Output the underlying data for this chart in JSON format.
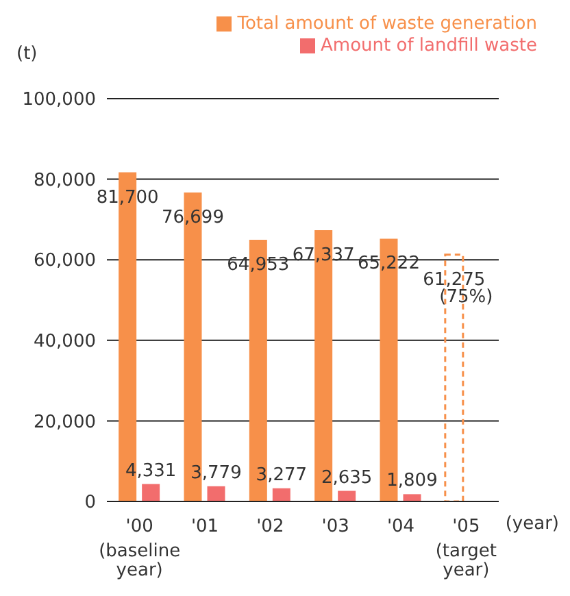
{
  "chart_data": {
    "type": "bar",
    "ylabel": "(t)",
    "xlabel": "(year)",
    "categories": [
      "'00 (baseline year)",
      "'01",
      "'02",
      "'03",
      "'04",
      "'05 (target year)"
    ],
    "series": [
      {
        "name": "Total amount of waste generation",
        "color": "#f7904a",
        "values": [
          81700,
          76699,
          64953,
          67337,
          65222,
          null
        ],
        "value_labels": [
          "81,700",
          "76,699",
          "64,953",
          "67,337",
          "65,222",
          null
        ]
      },
      {
        "name": "Amount of landfill waste",
        "color": "#f26d6d",
        "values": [
          4331,
          3779,
          3277,
          2635,
          1809,
          null
        ],
        "value_labels": [
          "4,331",
          "3,779",
          "3,277",
          "2,635",
          "1,809",
          null
        ]
      },
      {
        "color": "#f7904a",
        "line_style": "dashed",
        "values": [
          null,
          null,
          null,
          null,
          null,
          61275
        ],
        "value_labels": [
          null,
          null,
          null,
          null,
          null,
          "61,275"
        ]
      }
    ],
    "ylim": [
      0,
      100000
    ],
    "yticks": [
      {
        "value": 0,
        "label": "0"
      },
      {
        "value": 20000,
        "label": "20,000"
      },
      {
        "value": 40000,
        "label": "40,000"
      },
      {
        "value": 60000,
        "label": "60,000"
      },
      {
        "value": 80000,
        "label": "80,000"
      },
      {
        "value": 100000,
        "label": "100,000"
      }
    ],
    "grid": "y",
    "legend": "top right",
    "annotations": [
      {
        "text": "(75%)",
        "x": "'05 (target year)",
        "y": 51000
      }
    ]
  }
}
